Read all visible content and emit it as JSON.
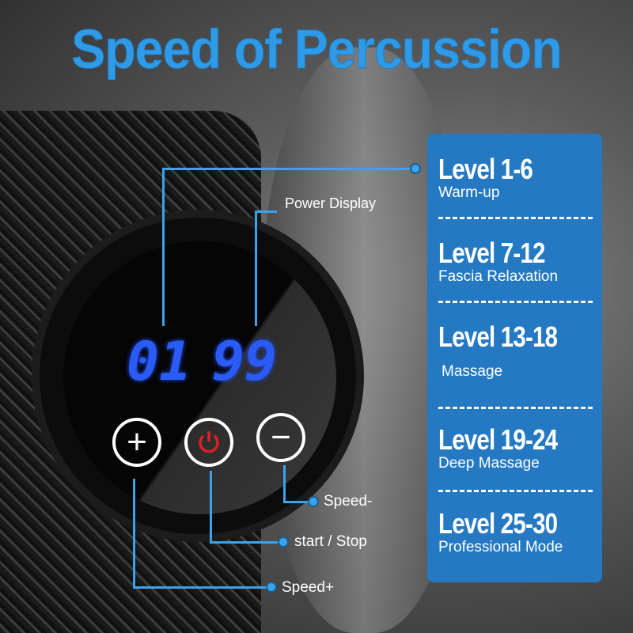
{
  "title": "Speed of Percussion",
  "display": {
    "left": "01",
    "right": "99"
  },
  "callouts": {
    "power_display": "Power Display",
    "speed_minus": "Speed-",
    "start_stop": "start / Stop",
    "speed_plus": "Speed+"
  },
  "levels": [
    {
      "level": "Level 1-6",
      "mode": "Warm-up"
    },
    {
      "level": "Level 7-12",
      "mode": "Fascia Relaxation"
    },
    {
      "level": "Level 13-18",
      "mode": "Massage"
    },
    {
      "level": "Level 19-24",
      "mode": "Deep Massage"
    },
    {
      "level": "Level 25-30",
      "mode": "Professional Mode"
    }
  ],
  "colors": {
    "accent": "#2f9be8",
    "panel": "#2479c2",
    "digits": "#2a5cf5",
    "power": "#e02020"
  }
}
